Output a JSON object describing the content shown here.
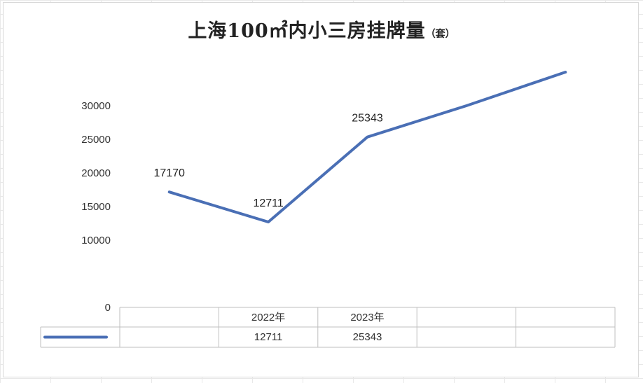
{
  "chart_data": {
    "type": "line",
    "title": "上海100㎡内小三房挂牌量",
    "title_unit": "（套）",
    "categories": [
      "",
      "2022年",
      "2023年",
      "",
      ""
    ],
    "series": [
      {
        "name": "",
        "values": [
          17170,
          12711,
          25343,
          30000,
          35000
        ],
        "color": "#4a6fb5"
      }
    ],
    "data_labels": [
      "17170",
      "12711",
      "25343",
      "",
      ""
    ],
    "table_values": [
      "",
      "12711",
      "25343",
      "",
      ""
    ],
    "y_ticks": [
      "0",
      "",
      "10000",
      "15000",
      "20000",
      "25000",
      "30000",
      ""
    ],
    "ylim": [
      0,
      35000
    ],
    "grid": false,
    "legend": "data-table"
  }
}
